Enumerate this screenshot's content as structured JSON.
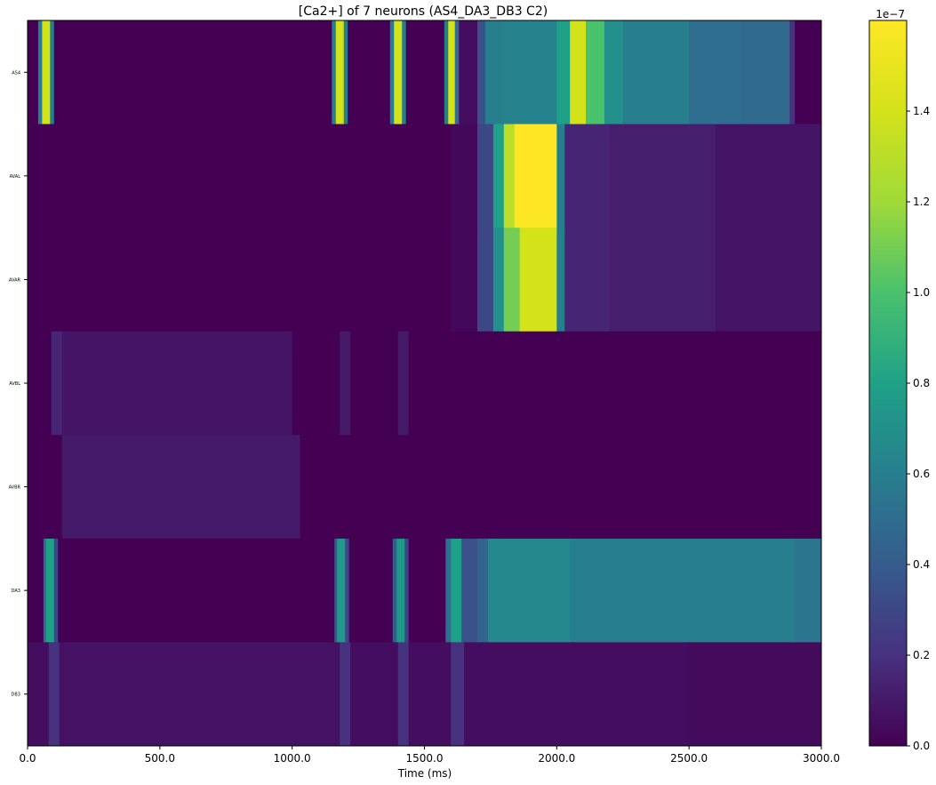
{
  "chart_data": {
    "type": "heatmap",
    "title": "[Ca2+] of 7 neurons (AS4_DA3_DB3 C2)",
    "xlabel": "Time (ms)",
    "ylabel": "",
    "xlim": [
      0,
      3000
    ],
    "x_ticks": [
      "0.0",
      "500.0",
      "1000.0",
      "1500.0",
      "2000.0",
      "2500.0",
      "3000.0"
    ],
    "rows": [
      "AS4",
      "AVAL",
      "AVAR",
      "AVBL",
      "AVBR",
      "DA3",
      "DB3"
    ],
    "colorbar": {
      "colormap": "viridis",
      "range": [
        0,
        1.6e-07
      ],
      "multiplier": "1e−7",
      "ticks": [
        "0.0",
        "0.2",
        "0.4",
        "0.6",
        "0.8",
        "1.0",
        "1.2",
        "1.4"
      ]
    },
    "series": [
      {
        "name": "AS4",
        "segments": [
          [
            0,
            40,
            0.0
          ],
          [
            40,
            55,
            0.6
          ],
          [
            55,
            85,
            1.4
          ],
          [
            85,
            100,
            0.6
          ],
          [
            100,
            1150,
            0.0
          ],
          [
            1150,
            1165,
            0.6
          ],
          [
            1165,
            1195,
            1.4
          ],
          [
            1195,
            1210,
            0.6
          ],
          [
            1210,
            1370,
            0.0
          ],
          [
            1370,
            1385,
            0.6
          ],
          [
            1385,
            1415,
            1.4
          ],
          [
            1415,
            1430,
            0.6
          ],
          [
            1430,
            1575,
            0.0
          ],
          [
            1575,
            1590,
            0.6
          ],
          [
            1590,
            1615,
            1.4
          ],
          [
            1615,
            1630,
            0.5
          ],
          [
            1630,
            1700,
            0.05
          ],
          [
            1700,
            1730,
            0.35
          ],
          [
            1730,
            1800,
            0.6
          ],
          [
            1800,
            2000,
            0.62
          ],
          [
            2000,
            2050,
            0.8
          ],
          [
            2050,
            2110,
            1.4
          ],
          [
            2110,
            2180,
            1.0
          ],
          [
            2180,
            2250,
            0.7
          ],
          [
            2250,
            2500,
            0.6
          ],
          [
            2500,
            2700,
            0.5
          ],
          [
            2700,
            2880,
            0.48
          ],
          [
            2880,
            2900,
            0.2
          ],
          [
            2900,
            3000,
            0.0
          ]
        ]
      },
      {
        "name": "AVAL",
        "segments": [
          [
            0,
            1600,
            0.0
          ],
          [
            1600,
            1700,
            0.03
          ],
          [
            1700,
            1760,
            0.3
          ],
          [
            1760,
            1800,
            0.8
          ],
          [
            1800,
            1840,
            1.3
          ],
          [
            1840,
            2000,
            1.6
          ],
          [
            2000,
            2030,
            0.6
          ],
          [
            2030,
            2200,
            0.15
          ],
          [
            2200,
            2600,
            0.12
          ],
          [
            2600,
            3000,
            0.08
          ]
        ]
      },
      {
        "name": "AVAR",
        "segments": [
          [
            0,
            1600,
            0.0
          ],
          [
            1600,
            1700,
            0.03
          ],
          [
            1700,
            1760,
            0.3
          ],
          [
            1760,
            1800,
            0.7
          ],
          [
            1800,
            1860,
            1.1
          ],
          [
            1860,
            2000,
            1.4
          ],
          [
            2000,
            2030,
            0.6
          ],
          [
            2030,
            2200,
            0.15
          ],
          [
            2200,
            2600,
            0.12
          ],
          [
            2600,
            3000,
            0.08
          ]
        ]
      },
      {
        "name": "AVBL",
        "segments": [
          [
            0,
            90,
            0.0
          ],
          [
            90,
            130,
            0.15
          ],
          [
            130,
            1000,
            0.08
          ],
          [
            1000,
            1180,
            0.0
          ],
          [
            1180,
            1220,
            0.1
          ],
          [
            1220,
            1400,
            0.0
          ],
          [
            1400,
            1440,
            0.1
          ],
          [
            1440,
            3000,
            0.0
          ]
        ]
      },
      {
        "name": "AVBR",
        "segments": [
          [
            0,
            130,
            0.0
          ],
          [
            130,
            1030,
            0.1
          ],
          [
            1030,
            3000,
            0.0
          ]
        ]
      },
      {
        "name": "DA3",
        "segments": [
          [
            0,
            60,
            0.0
          ],
          [
            60,
            70,
            0.5
          ],
          [
            70,
            100,
            0.8
          ],
          [
            100,
            115,
            0.3
          ],
          [
            115,
            1160,
            0.0
          ],
          [
            1160,
            1170,
            0.4
          ],
          [
            1170,
            1200,
            0.75
          ],
          [
            1200,
            1215,
            0.3
          ],
          [
            1215,
            1380,
            0.0
          ],
          [
            1380,
            1395,
            0.4
          ],
          [
            1395,
            1425,
            0.75
          ],
          [
            1425,
            1440,
            0.3
          ],
          [
            1440,
            1580,
            0.0
          ],
          [
            1580,
            1600,
            0.5
          ],
          [
            1600,
            1640,
            0.8
          ],
          [
            1640,
            1700,
            0.35
          ],
          [
            1700,
            1740,
            0.45
          ],
          [
            1740,
            2050,
            0.65
          ],
          [
            2050,
            2900,
            0.6
          ],
          [
            2900,
            3000,
            0.55
          ]
        ]
      },
      {
        "name": "DB3",
        "segments": [
          [
            0,
            80,
            0.05
          ],
          [
            80,
            120,
            0.2
          ],
          [
            120,
            1180,
            0.07
          ],
          [
            1180,
            1220,
            0.2
          ],
          [
            1220,
            1400,
            0.05
          ],
          [
            1400,
            1440,
            0.2
          ],
          [
            1440,
            1600,
            0.05
          ],
          [
            1600,
            1650,
            0.2
          ],
          [
            1650,
            2500,
            0.05
          ],
          [
            2500,
            3000,
            0.04
          ]
        ]
      }
    ]
  }
}
